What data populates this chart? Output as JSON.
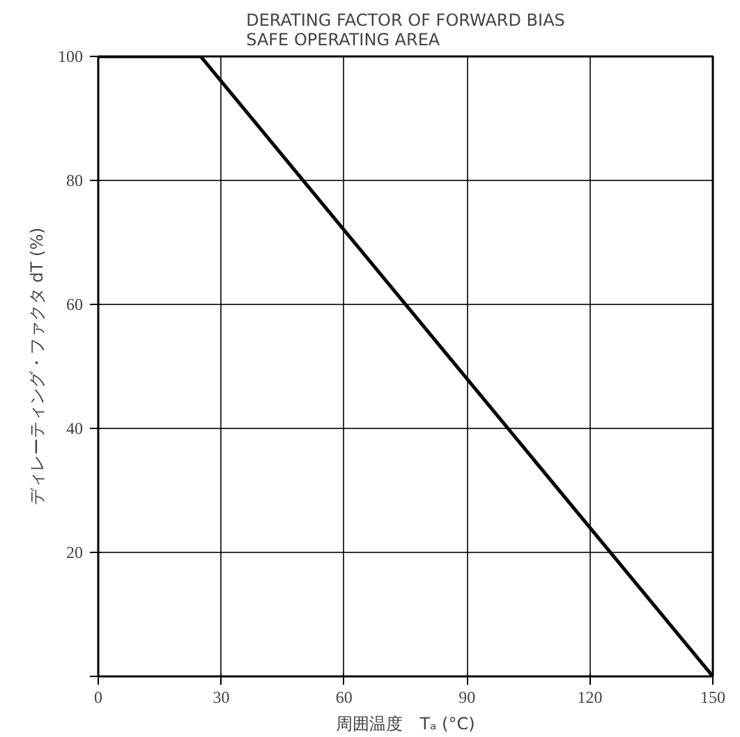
{
  "chart_data": {
    "type": "line",
    "title": "DERATING FACTOR OF FORWARD BIAS\nSAFE OPERATING AREA",
    "xlabel": "周囲温度　Tₐ (°C)",
    "ylabel": "ディレーティング・ファクタ dT (%)",
    "x": [
      0,
      25,
      150
    ],
    "series": [
      {
        "color": "#000000",
        "values": [
          100,
          100,
          0
        ]
      }
    ],
    "xlim": [
      0,
      150
    ],
    "xticks": [
      0,
      30,
      60,
      90,
      120,
      150
    ],
    "ylim": [
      0,
      100
    ],
    "yticks": [
      {
        "value": 0,
        "label": null
      },
      20,
      40,
      60,
      80,
      100
    ],
    "grid": true,
    "marker": "none",
    "line_style": "solid"
  }
}
